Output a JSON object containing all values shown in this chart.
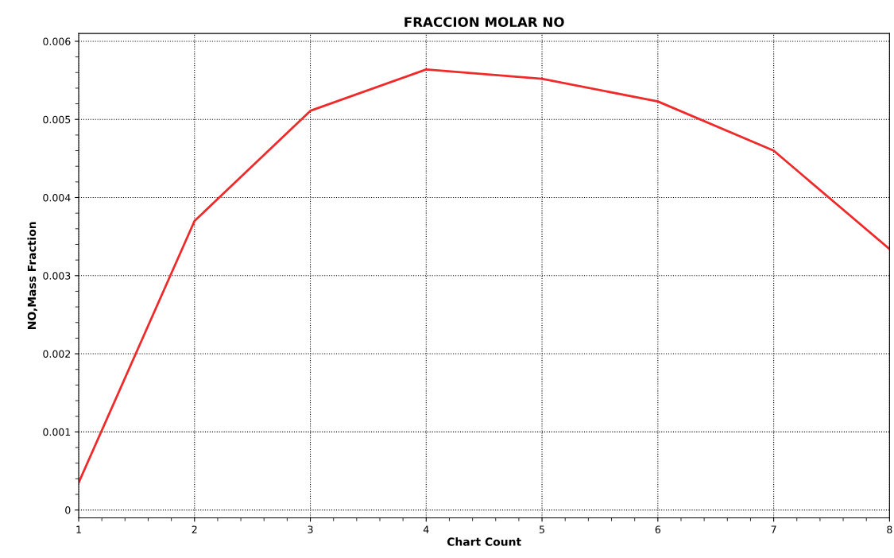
{
  "chart_data": {
    "type": "line",
    "title": "FRACCION MOLAR NO",
    "xlabel": "Chart Count",
    "ylabel": "NO,Mass Fraction",
    "x": [
      1,
      2,
      3,
      4,
      5,
      6,
      7,
      8
    ],
    "series": [
      {
        "color": "#ee2a2a",
        "values": [
          0.00035,
          0.0037,
          0.00511,
          0.00564,
          0.00552,
          0.00523,
          0.0046,
          0.00334
        ]
      }
    ],
    "xlim": [
      1,
      8
    ],
    "xticks": [
      1,
      2,
      3,
      4,
      5,
      6,
      7,
      8
    ],
    "ylim": [
      -0.0001,
      0.0061
    ],
    "yticks": [
      0,
      0.001,
      0.002,
      0.003,
      0.004,
      0.005,
      0.006
    ],
    "grid": true,
    "line_style": "solid",
    "marker": "none"
  }
}
